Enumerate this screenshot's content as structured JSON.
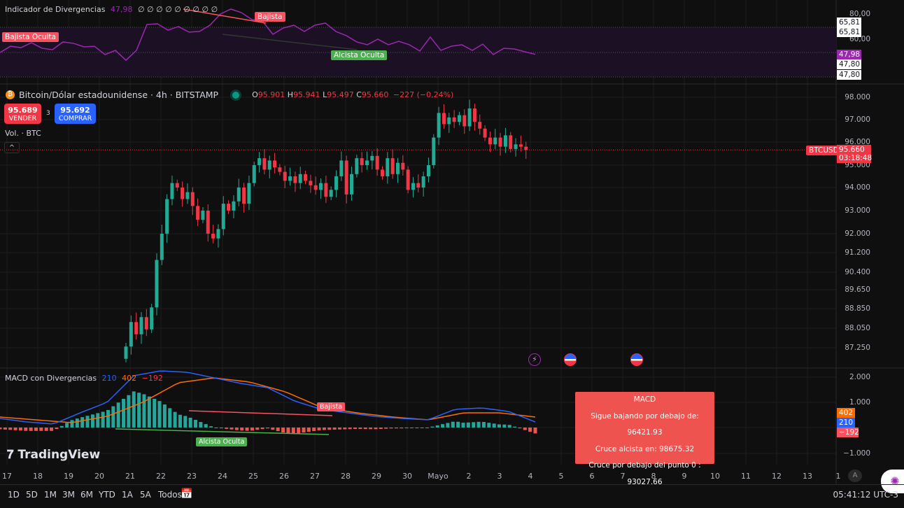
{
  "osc": {
    "title": "Indicador de Divergencias",
    "value": "47,98",
    "extras": "∅ ∅ ∅ ∅ ∅ ∅ ∅ ∅ ∅",
    "labels": {
      "bajista_oculta": "Bajista Oculta",
      "bajista": "Bajista",
      "alcista_oculta": "Alcista Oculta"
    },
    "ticks": [
      "80,00",
      "60,00"
    ],
    "pills": [
      "65,81",
      "65,81",
      "47,98",
      "47,80",
      "47,80"
    ],
    "values": [
      49.4,
      54.4,
      53.3,
      57.2,
      52.8,
      51.7,
      57.8,
      56.7,
      53.9,
      54.4,
      47.8,
      51.1,
      43.3,
      51.1,
      71.7,
      72.2,
      67.2,
      70,
      65.6,
      66.1,
      71.1,
      80,
      83.9,
      81.1,
      75.6,
      74.4,
      63.9,
      68.9,
      71.1,
      66.1,
      71.1,
      72.8,
      66.1,
      62.8,
      57.8,
      55.6,
      60,
      55.6,
      58.3,
      55.6,
      50.6,
      61.7,
      51.1,
      54.4,
      55.6,
      51.1,
      56.1,
      47.8,
      52.8,
      52.2,
      50,
      47.98
    ],
    "line_color": "#9c27b0"
  },
  "symbol": {
    "name": "Bitcoin/Dólar estadounidense · 4h · BITSTAMP",
    "o_label": "O",
    "o": "95.901",
    "h_label": "H",
    "h": "95.941",
    "l_label": "L",
    "l": "95.497",
    "c_label": "C",
    "c": "95.660",
    "change": "−227 (−0,24%)",
    "sell_price": "95.689",
    "sell_label": "VENDER",
    "spread": "3",
    "buy_price": "95.692",
    "buy_label": "COMPRAR",
    "volume_label": "Vol. · BTC",
    "ticker_tag": "BTCUSD",
    "last_price": "95.660",
    "countdown": "03:18:48"
  },
  "chart_data": {
    "type": "candlestick",
    "price_ticks": [
      "98.000",
      "97.000",
      "96.000",
      "95.000",
      "94.000",
      "93.000",
      "92.000",
      "91.200",
      "90.400",
      "89.650",
      "88.850",
      "88.050",
      "87.250"
    ],
    "price_tick_values": [
      98000,
      97000,
      96000,
      95000,
      94000,
      93000,
      92000,
      91200,
      90400,
      89650,
      88850,
      88050,
      87250
    ],
    "first_open": 86800,
    "closes": [
      87300,
      88300,
      87800,
      88500,
      88000,
      88900,
      90900,
      92000,
      93500,
      94200,
      94000,
      93500,
      93800,
      93200,
      92600,
      93000,
      92000,
      91800,
      92200,
      93300,
      93000,
      93400,
      94000,
      93300,
      94200,
      95000,
      95300,
      94800,
      95200,
      94900,
      94700,
      94300,
      94500,
      94200,
      94600,
      94300,
      94100,
      93900,
      94200,
      93600,
      93900,
      94500,
      95200,
      93700,
      94600,
      95300,
      95000,
      95200,
      95400,
      94800,
      94500,
      95300,
      94600,
      95100,
      94800,
      93900,
      94200,
      94000,
      94500,
      95000,
      96200,
      97300,
      96800,
      97100,
      96900,
      97200,
      96700,
      97500,
      96900,
      96600,
      96200,
      95900,
      96200,
      95800,
      96300,
      95700,
      95900,
      95800,
      95660
    ],
    "up_color": "#22ab94",
    "down_color": "#f23645"
  },
  "macd": {
    "title": "MACD con Divergencias",
    "macd": "210",
    "signal": "402",
    "hist": "−192",
    "ticks": [
      "2.000",
      "1.000",
      "−1.000"
    ],
    "macd_values": [
      361,
      222,
      139,
      583,
      1000,
      2056,
      2250,
      2194,
      1972,
      1750,
      1583,
      1056,
      722,
      583,
      444,
      361,
      306,
      722,
      778,
      639,
      222
    ],
    "signal_values": [
      417,
      306,
      194,
      444,
      1000,
      1778,
      1972,
      1806,
      1417,
      806,
      583,
      417,
      306,
      583,
      583,
      417
    ],
    "labels": {
      "bajista": "Bajista",
      "alcista_oculta": "Alcista Oculta"
    },
    "tooltip": {
      "title": "MACD",
      "line1": "Sigue bajando por debajo de: 96421.93",
      "line2": "Cruce alcista en: 98675.32",
      "line3": "Cruce por debajo del punto 0 : 93027.66"
    }
  },
  "xaxis": [
    "17",
    "18",
    "19",
    "20",
    "21",
    "22",
    "23",
    "24",
    "25",
    "26",
    "27",
    "28",
    "29",
    "30",
    "Mayo",
    "2",
    "3",
    "4",
    "5",
    "6",
    "7",
    "8",
    "9",
    "10",
    "11",
    "12",
    "13",
    "1"
  ],
  "timeframes": [
    "1D",
    "5D",
    "1M",
    "3M",
    "6M",
    "YTD",
    "1A",
    "5A",
    "Todos"
  ],
  "clock": "05:41:12 UTC-3",
  "brand": "TradingView",
  "auto_label": "A"
}
